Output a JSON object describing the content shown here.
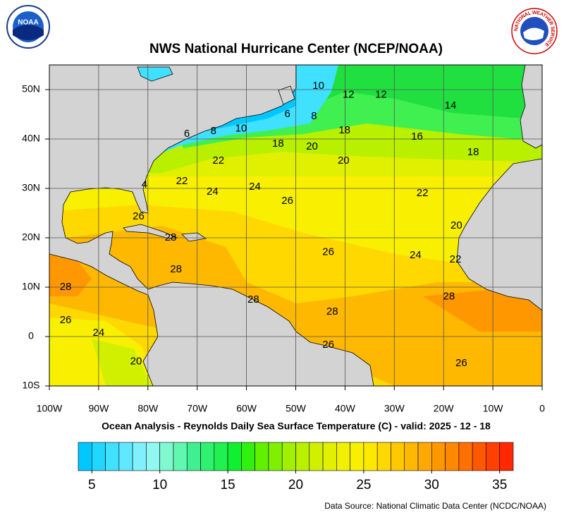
{
  "title": "NWS National Hurricane Center (NCEP/NOAA)",
  "subtitle": "Ocean Analysis - Reynolds Daily Sea Surface Temperature (C) - valid: 2025 - 12 - 18",
  "source": "Data Source: National Climatic Data Center (NCDC/NOAA)",
  "logos": {
    "noaa": "NOAA",
    "nws": "NATIONAL WEATHER SERVICE"
  },
  "map": {
    "xlim": [
      -100,
      0
    ],
    "ylim": [
      -10,
      55
    ],
    "xticks": [
      {
        "value": -100,
        "label": "100W"
      },
      {
        "value": -90,
        "label": "90W"
      },
      {
        "value": -80,
        "label": "80W"
      },
      {
        "value": -70,
        "label": "70W"
      },
      {
        "value": -60,
        "label": "60W"
      },
      {
        "value": -50,
        "label": "50W"
      },
      {
        "value": -40,
        "label": "40W"
      },
      {
        "value": -30,
        "label": "30W"
      },
      {
        "value": -20,
        "label": "20W"
      },
      {
        "value": -10,
        "label": "10W"
      },
      0
    ],
    "yticks": [
      {
        "value": -10,
        "label": "10S"
      },
      0,
      {
        "value": 10,
        "label": "10N"
      },
      {
        "value": 20,
        "label": "20N"
      },
      {
        "value": 30,
        "label": "30N"
      },
      {
        "value": 40,
        "label": "40N"
      },
      {
        "value": 50,
        "label": "50N"
      }
    ],
    "grid": true,
    "contour_labels": [
      {
        "value": 10,
        "lon": -45.4,
        "lat": 50.7
      },
      {
        "value": 12,
        "lon": -39.3,
        "lat": 48.9
      },
      {
        "value": 12,
        "lon": -32.7,
        "lat": 48.9
      },
      {
        "value": 14,
        "lon": -18.6,
        "lat": 46.7
      },
      {
        "value": 6,
        "lon": -51.7,
        "lat": 45
      },
      {
        "value": 8,
        "lon": -46.3,
        "lat": 44.6
      },
      {
        "value": 10,
        "lon": -61.1,
        "lat": 42.1
      },
      {
        "value": 8,
        "lon": -66.7,
        "lat": 41.6
      },
      {
        "value": 6,
        "lon": -72.1,
        "lat": 41
      },
      {
        "value": 18,
        "lon": -40.1,
        "lat": 41.7
      },
      {
        "value": 16,
        "lon": -25.4,
        "lat": 40.4
      },
      {
        "value": 18,
        "lon": -53.6,
        "lat": 39
      },
      {
        "value": 20,
        "lon": -46.7,
        "lat": 38.4
      },
      {
        "value": 18,
        "lon": -14,
        "lat": 37.3
      },
      {
        "value": 20,
        "lon": -40.3,
        "lat": 35.6
      },
      {
        "value": 22,
        "lon": -65.7,
        "lat": 35.6
      },
      {
        "value": 4,
        "lon": -80.7,
        "lat": 30.7
      },
      {
        "value": 22,
        "lon": -73.1,
        "lat": 31.4
      },
      {
        "value": 24,
        "lon": -66.9,
        "lat": 29.3
      },
      {
        "value": 24,
        "lon": -58.3,
        "lat": 30.3
      },
      {
        "value": 26,
        "lon": -51.7,
        "lat": 27.4
      },
      {
        "value": 22,
        "lon": -24.3,
        "lat": 29
      },
      {
        "value": 26,
        "lon": -81.9,
        "lat": 24.3
      },
      {
        "value": 20,
        "lon": -17.4,
        "lat": 22.4
      },
      {
        "value": 28,
        "lon": -75.4,
        "lat": 20
      },
      {
        "value": 26,
        "lon": -43.4,
        "lat": 17.1
      },
      {
        "value": 24,
        "lon": -25.7,
        "lat": 16.4
      },
      {
        "value": 22,
        "lon": -17.6,
        "lat": 15.6
      },
      {
        "value": 28,
        "lon": -74.3,
        "lat": 13.6
      },
      {
        "value": 28,
        "lon": -96.7,
        "lat": 10
      },
      {
        "value": 28,
        "lon": -18.9,
        "lat": 8.1
      },
      {
        "value": 28,
        "lon": -58.6,
        "lat": 7.4
      },
      {
        "value": 28,
        "lon": -42.6,
        "lat": 5
      },
      {
        "value": 26,
        "lon": -96.7,
        "lat": 3.3
      },
      {
        "value": 24,
        "lon": -90,
        "lat": 0.7
      },
      {
        "value": 26,
        "lon": -43.4,
        "lat": -1.7
      },
      {
        "value": 20,
        "lon": -82.4,
        "lat": -5.1
      },
      {
        "value": 26,
        "lon": -16.4,
        "lat": -5.4
      }
    ]
  },
  "colorbar": {
    "min": 4,
    "max": 36,
    "ticks": [
      5,
      10,
      15,
      20,
      25,
      30,
      35
    ],
    "colors": [
      "#00c8ff",
      "#20d8ff",
      "#40e0ff",
      "#60e8ff",
      "#80f0ff",
      "#90f8f0",
      "#80f8d0",
      "#60f8b0",
      "#40f090",
      "#30f070",
      "#20f050",
      "#10f030",
      "#30f010",
      "#60f000",
      "#80f000",
      "#a0f000",
      "#b8f000",
      "#d0f000",
      "#e0f000",
      "#f0f000",
      "#f8f000",
      "#ffe800",
      "#ffd800",
      "#ffc800",
      "#ffb800",
      "#ffa800",
      "#ff9800",
      "#ff8800",
      "#ff7000",
      "#ff5800",
      "#ff4000",
      "#ff2800"
    ]
  }
}
